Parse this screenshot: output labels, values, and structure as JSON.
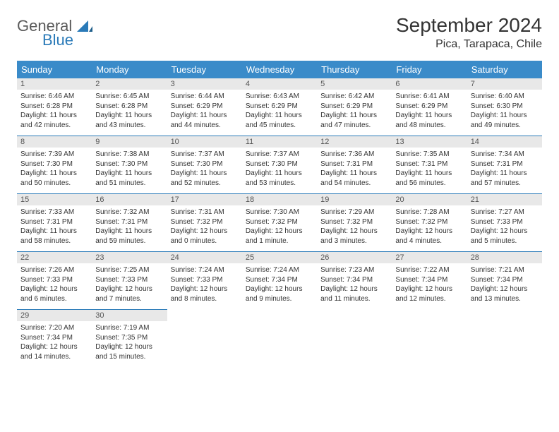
{
  "logo": {
    "general": "General",
    "blue": "Blue"
  },
  "header": {
    "month_title": "September 2024",
    "location": "Pica, Tarapaca, Chile"
  },
  "colors": {
    "header_bg": "#3a8bc9",
    "row_divider": "#2a7ab8",
    "daynum_bg": "#e8e8e8",
    "text": "#333333"
  },
  "weekdays": [
    "Sunday",
    "Monday",
    "Tuesday",
    "Wednesday",
    "Thursday",
    "Friday",
    "Saturday"
  ],
  "weeks": [
    [
      {
        "n": "1",
        "sr": "Sunrise: 6:46 AM",
        "ss": "Sunset: 6:28 PM",
        "dl": "Daylight: 11 hours and 42 minutes."
      },
      {
        "n": "2",
        "sr": "Sunrise: 6:45 AM",
        "ss": "Sunset: 6:28 PM",
        "dl": "Daylight: 11 hours and 43 minutes."
      },
      {
        "n": "3",
        "sr": "Sunrise: 6:44 AM",
        "ss": "Sunset: 6:29 PM",
        "dl": "Daylight: 11 hours and 44 minutes."
      },
      {
        "n": "4",
        "sr": "Sunrise: 6:43 AM",
        "ss": "Sunset: 6:29 PM",
        "dl": "Daylight: 11 hours and 45 minutes."
      },
      {
        "n": "5",
        "sr": "Sunrise: 6:42 AM",
        "ss": "Sunset: 6:29 PM",
        "dl": "Daylight: 11 hours and 47 minutes."
      },
      {
        "n": "6",
        "sr": "Sunrise: 6:41 AM",
        "ss": "Sunset: 6:29 PM",
        "dl": "Daylight: 11 hours and 48 minutes."
      },
      {
        "n": "7",
        "sr": "Sunrise: 6:40 AM",
        "ss": "Sunset: 6:30 PM",
        "dl": "Daylight: 11 hours and 49 minutes."
      }
    ],
    [
      {
        "n": "8",
        "sr": "Sunrise: 7:39 AM",
        "ss": "Sunset: 7:30 PM",
        "dl": "Daylight: 11 hours and 50 minutes."
      },
      {
        "n": "9",
        "sr": "Sunrise: 7:38 AM",
        "ss": "Sunset: 7:30 PM",
        "dl": "Daylight: 11 hours and 51 minutes."
      },
      {
        "n": "10",
        "sr": "Sunrise: 7:37 AM",
        "ss": "Sunset: 7:30 PM",
        "dl": "Daylight: 11 hours and 52 minutes."
      },
      {
        "n": "11",
        "sr": "Sunrise: 7:37 AM",
        "ss": "Sunset: 7:30 PM",
        "dl": "Daylight: 11 hours and 53 minutes."
      },
      {
        "n": "12",
        "sr": "Sunrise: 7:36 AM",
        "ss": "Sunset: 7:31 PM",
        "dl": "Daylight: 11 hours and 54 minutes."
      },
      {
        "n": "13",
        "sr": "Sunrise: 7:35 AM",
        "ss": "Sunset: 7:31 PM",
        "dl": "Daylight: 11 hours and 56 minutes."
      },
      {
        "n": "14",
        "sr": "Sunrise: 7:34 AM",
        "ss": "Sunset: 7:31 PM",
        "dl": "Daylight: 11 hours and 57 minutes."
      }
    ],
    [
      {
        "n": "15",
        "sr": "Sunrise: 7:33 AM",
        "ss": "Sunset: 7:31 PM",
        "dl": "Daylight: 11 hours and 58 minutes."
      },
      {
        "n": "16",
        "sr": "Sunrise: 7:32 AM",
        "ss": "Sunset: 7:31 PM",
        "dl": "Daylight: 11 hours and 59 minutes."
      },
      {
        "n": "17",
        "sr": "Sunrise: 7:31 AM",
        "ss": "Sunset: 7:32 PM",
        "dl": "Daylight: 12 hours and 0 minutes."
      },
      {
        "n": "18",
        "sr": "Sunrise: 7:30 AM",
        "ss": "Sunset: 7:32 PM",
        "dl": "Daylight: 12 hours and 1 minute."
      },
      {
        "n": "19",
        "sr": "Sunrise: 7:29 AM",
        "ss": "Sunset: 7:32 PM",
        "dl": "Daylight: 12 hours and 3 minutes."
      },
      {
        "n": "20",
        "sr": "Sunrise: 7:28 AM",
        "ss": "Sunset: 7:32 PM",
        "dl": "Daylight: 12 hours and 4 minutes."
      },
      {
        "n": "21",
        "sr": "Sunrise: 7:27 AM",
        "ss": "Sunset: 7:33 PM",
        "dl": "Daylight: 12 hours and 5 minutes."
      }
    ],
    [
      {
        "n": "22",
        "sr": "Sunrise: 7:26 AM",
        "ss": "Sunset: 7:33 PM",
        "dl": "Daylight: 12 hours and 6 minutes."
      },
      {
        "n": "23",
        "sr": "Sunrise: 7:25 AM",
        "ss": "Sunset: 7:33 PM",
        "dl": "Daylight: 12 hours and 7 minutes."
      },
      {
        "n": "24",
        "sr": "Sunrise: 7:24 AM",
        "ss": "Sunset: 7:33 PM",
        "dl": "Daylight: 12 hours and 8 minutes."
      },
      {
        "n": "25",
        "sr": "Sunrise: 7:24 AM",
        "ss": "Sunset: 7:34 PM",
        "dl": "Daylight: 12 hours and 9 minutes."
      },
      {
        "n": "26",
        "sr": "Sunrise: 7:23 AM",
        "ss": "Sunset: 7:34 PM",
        "dl": "Daylight: 12 hours and 11 minutes."
      },
      {
        "n": "27",
        "sr": "Sunrise: 7:22 AM",
        "ss": "Sunset: 7:34 PM",
        "dl": "Daylight: 12 hours and 12 minutes."
      },
      {
        "n": "28",
        "sr": "Sunrise: 7:21 AM",
        "ss": "Sunset: 7:34 PM",
        "dl": "Daylight: 12 hours and 13 minutes."
      }
    ],
    [
      {
        "n": "29",
        "sr": "Sunrise: 7:20 AM",
        "ss": "Sunset: 7:34 PM",
        "dl": "Daylight: 12 hours and 14 minutes."
      },
      {
        "n": "30",
        "sr": "Sunrise: 7:19 AM",
        "ss": "Sunset: 7:35 PM",
        "dl": "Daylight: 12 hours and 15 minutes."
      },
      null,
      null,
      null,
      null,
      null
    ]
  ]
}
